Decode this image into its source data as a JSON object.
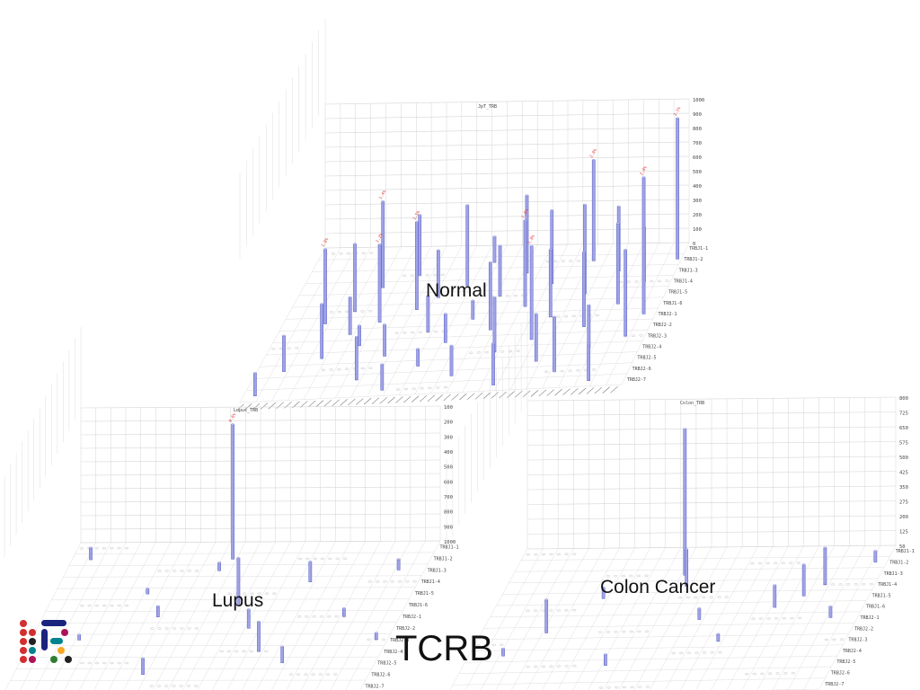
{
  "slide": {
    "title": "TCRB",
    "logo_colors": [
      "#d32f2f",
      "#2e7d32",
      "#1a237e",
      "#f9a825",
      "#00838f",
      "#212121",
      "#ad1457"
    ]
  },
  "colors": {
    "bar_fill": "#9fa3e6",
    "bar_edge": "#5a5fc4",
    "grid": "#d6d6d6",
    "tick_text": "#444444",
    "hot_label": "#e53935"
  },
  "chart_data": [
    {
      "type": "bar3d",
      "title": "JpT_TRB",
      "caption": "Normal",
      "zlim": [
        0,
        1000
      ],
      "z_ticks": [
        "0",
        "100",
        "200",
        "300",
        "400",
        "500",
        "600",
        "700",
        "800",
        "900",
        "1000"
      ],
      "y_categories": [
        "TRBJ1-1",
        "TRBJ1-2",
        "TRBJ1-3",
        "TRBJ1-4",
        "TRBJ1-5",
        "TRBJ1-6",
        "TRBJ2-1",
        "TRBJ2-2",
        "TRBJ2-3",
        "TRBJ2-4",
        "TRBJ2-5",
        "TRBJ2-6",
        "TRBJ2-7"
      ],
      "x_count": 48,
      "bars": [
        [
          1,
          12,
          160
        ],
        [
          3,
          10,
          250
        ],
        [
          5,
          6,
          520
        ],
        [
          7,
          9,
          380
        ],
        [
          8,
          5,
          470
        ],
        [
          9,
          7,
          260
        ],
        [
          10,
          3,
          600
        ],
        [
          11,
          8,
          140
        ],
        [
          12,
          6,
          540
        ],
        [
          13,
          11,
          300
        ],
        [
          14,
          2,
          420
        ],
        [
          15,
          9,
          220
        ],
        [
          16,
          5,
          610
        ],
        [
          17,
          12,
          180
        ],
        [
          18,
          4,
          330
        ],
        [
          19,
          7,
          250
        ],
        [
          20,
          10,
          120
        ],
        [
          21,
          3,
          560
        ],
        [
          22,
          8,
          200
        ],
        [
          23,
          1,
          180
        ],
        [
          24,
          6,
          130
        ],
        [
          25,
          11,
          210
        ],
        [
          26,
          4,
          350
        ],
        [
          27,
          7,
          470
        ],
        [
          28,
          2,
          540
        ],
        [
          29,
          9,
          380
        ],
        [
          30,
          5,
          600
        ],
        [
          31,
          12,
          290
        ],
        [
          32,
          3,
          510
        ],
        [
          33,
          8,
          650
        ],
        [
          34,
          6,
          470
        ],
        [
          35,
          10,
          330
        ],
        [
          36,
          1,
          700
        ],
        [
          37,
          4,
          620
        ],
        [
          38,
          11,
          380
        ],
        [
          39,
          7,
          520
        ],
        [
          40,
          2,
          450
        ],
        [
          41,
          9,
          300
        ],
        [
          42,
          5,
          560
        ],
        [
          43,
          12,
          260
        ],
        [
          44,
          3,
          380
        ],
        [
          45,
          8,
          600
        ],
        [
          46,
          6,
          950
        ],
        [
          47,
          1,
          980
        ]
      ],
      "hot_labels": [
        [
          5,
          6,
          "1.0%"
        ],
        [
          10,
          3,
          "1.4%"
        ],
        [
          12,
          6,
          "1.2%"
        ],
        [
          16,
          5,
          "1.5%"
        ],
        [
          30,
          5,
          "1.6%"
        ],
        [
          33,
          8,
          "1.8%"
        ],
        [
          36,
          1,
          "2.0%"
        ],
        [
          46,
          6,
          "2.8%"
        ],
        [
          47,
          1,
          "3.1%"
        ]
      ]
    },
    {
      "type": "bar3d",
      "title": "Lupus_TRB",
      "caption": "Lupus",
      "zlim": [
        0,
        1000
      ],
      "z_ticks": [
        "100",
        "200",
        "300",
        "400",
        "500",
        "600",
        "700",
        "800",
        "900",
        "1000"
      ],
      "y_categories": [
        "TRBJ1-1",
        "TRBJ1-2",
        "TRBJ1-3",
        "TRBJ1-4",
        "TRBJ1-5",
        "TRBJ1-6",
        "TRBJ2-1",
        "TRBJ2-2",
        "TRBJ2-3",
        "TRBJ2-4",
        "TRBJ2-5",
        "TRBJ2-6",
        "TRBJ2-7"
      ],
      "x_count": 48,
      "bars": [
        [
          2,
          1,
          90
        ],
        [
          6,
          8,
          40
        ],
        [
          12,
          4,
          40
        ],
        [
          15,
          6,
          80
        ],
        [
          17,
          11,
          120
        ],
        [
          20,
          2,
          60
        ],
        [
          21,
          1,
          1000
        ],
        [
          25,
          5,
          350
        ],
        [
          28,
          7,
          140
        ],
        [
          31,
          9,
          220
        ],
        [
          33,
          3,
          150
        ],
        [
          35,
          10,
          120
        ],
        [
          40,
          6,
          60
        ],
        [
          44,
          2,
          80
        ],
        [
          46,
          8,
          50
        ]
      ],
      "hot_labels": [
        [
          21,
          1,
          "9.6%"
        ]
      ]
    },
    {
      "type": "bar3d",
      "title": "Colon_TRB",
      "caption": "Colon Cancer",
      "zlim": [
        0,
        800
      ],
      "z_ticks": [
        "800",
        "725",
        "650",
        "575",
        "500",
        "425",
        "350",
        "275",
        "200",
        "125",
        "50"
      ],
      "y_categories": [
        "TRBJ1-1",
        "TRBJ1-2",
        "TRBJ1-3",
        "TRBJ1-4",
        "TRBJ1-5",
        "TRBJ1-6",
        "TRBJ2-1",
        "TRBJ2-2",
        "TRBJ2-3",
        "TRBJ2-4",
        "TRBJ2-5",
        "TRBJ2-6",
        "TRBJ2-7"
      ],
      "x_count": 48,
      "bars": [
        [
          4,
          9,
          40
        ],
        [
          8,
          7,
          180
        ],
        [
          13,
          4,
          60
        ],
        [
          18,
          10,
          60
        ],
        [
          22,
          2,
          790
        ],
        [
          23,
          3,
          200
        ],
        [
          27,
          6,
          60
        ],
        [
          31,
          8,
          40
        ],
        [
          36,
          5,
          120
        ],
        [
          39,
          4,
          170
        ],
        [
          41,
          3,
          200
        ],
        [
          44,
          6,
          60
        ],
        [
          46,
          1,
          60
        ]
      ],
      "hot_labels": []
    }
  ]
}
